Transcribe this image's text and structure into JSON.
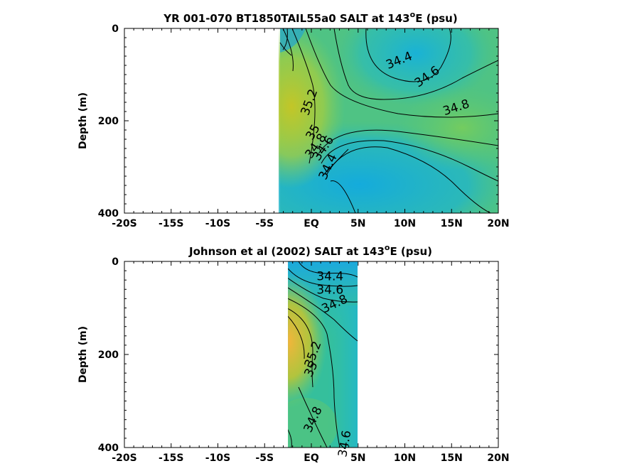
{
  "chart_data": [
    {
      "type": "contour",
      "title": "YR 001-070 BT1850TAIL55a0 SALT at 143",
      "title_sup": "o",
      "title_suffix": "E (psu)",
      "ylabel": "Depth (m)",
      "xlim": [
        -20,
        20
      ],
      "ylim": [
        0,
        400
      ],
      "y_reversed": true,
      "xtick_labels": [
        "-20S",
        "-15S",
        "-10S",
        "-5S",
        "EQ",
        "5N",
        "10N",
        "15N",
        "20N"
      ],
      "xtick_values": [
        -20,
        -15,
        -10,
        -5,
        0,
        5,
        10,
        15,
        20
      ],
      "ytick_labels": [
        "0",
        "200",
        "400"
      ],
      "ytick_values": [
        0,
        200,
        400
      ],
      "data_xrange": [
        -3.5,
        20
      ],
      "contour_labels": [
        {
          "text": "34.4",
          "x": 9.4,
          "y": 70,
          "angle": -22
        },
        {
          "text": "34.6",
          "x": 12.4,
          "y": 105,
          "angle": -35
        },
        {
          "text": "34.8",
          "x": 15.5,
          "y": 172,
          "angle": -18
        },
        {
          "text": "35.2",
          "x": -0.2,
          "y": 160,
          "angle": -70
        },
        {
          "text": "35",
          "x": 0.2,
          "y": 225,
          "angle": -60
        },
        {
          "text": "34.8",
          "x": 0.5,
          "y": 255,
          "angle": -55
        },
        {
          "text": "34.6",
          "x": 1.3,
          "y": 260,
          "angle": -55
        },
        {
          "text": "34.4",
          "x": 1.8,
          "y": 300,
          "angle": -65
        }
      ]
    },
    {
      "type": "contour",
      "title": "Johnson et al (2002) SALT at 143",
      "title_sup": "o",
      "title_suffix": "E (psu)",
      "ylabel": "Depth (m)",
      "xlim": [
        -20,
        20
      ],
      "ylim": [
        0,
        400
      ],
      "y_reversed": true,
      "xtick_labels": [
        "-20S",
        "-15S",
        "-10S",
        "-5S",
        "EQ",
        "5N",
        "10N",
        "15N",
        "20N"
      ],
      "xtick_values": [
        -20,
        -15,
        -10,
        -5,
        0,
        5,
        10,
        15,
        20
      ],
      "ytick_labels": [
        "0",
        "200",
        "400"
      ],
      "ytick_values": [
        0,
        200,
        400
      ],
      "data_xrange": [
        -2.5,
        5
      ],
      "contour_labels": [
        {
          "text": "34.4",
          "x": 2.0,
          "y": 33,
          "angle": 0
        },
        {
          "text": "34.6",
          "x": 2.0,
          "y": 62,
          "angle": 0
        },
        {
          "text": "34.8",
          "x": 2.5,
          "y": 92,
          "angle": -25
        },
        {
          "text": "35.2",
          "x": 0.2,
          "y": 200,
          "angle": -70
        },
        {
          "text": "35",
          "x": 0.0,
          "y": 232,
          "angle": -65
        },
        {
          "text": "34.8",
          "x": 0.2,
          "y": 340,
          "angle": -65
        },
        {
          "text": "34.6",
          "x": 3.6,
          "y": 392,
          "angle": -80
        }
      ]
    }
  ]
}
